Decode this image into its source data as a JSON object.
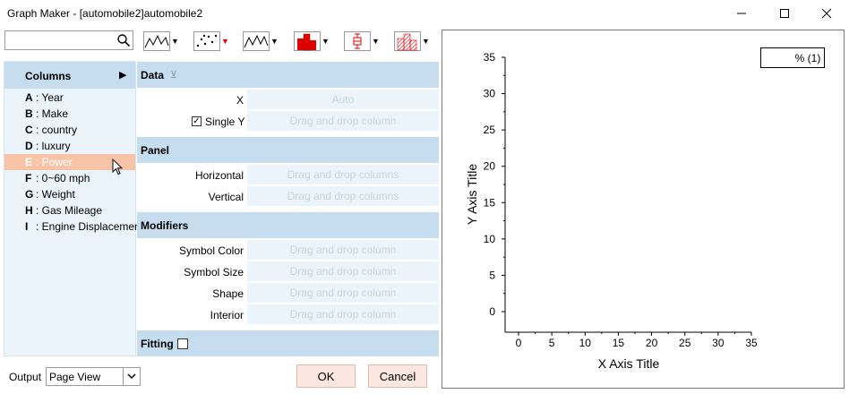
{
  "window": {
    "title": "Graph Maker - [automobile2]automobile2",
    "minimize": "—",
    "maximize": "☐",
    "close": "✕"
  },
  "toolbar": {
    "search_placeholder": "",
    "plot_types": [
      "line-icon",
      "scatter-icon",
      "line-symbol-icon",
      "column-icon",
      "box-icon",
      "stacked-column-icon"
    ],
    "dropdown_arrow": "▼"
  },
  "columns": {
    "title": "Columns",
    "expand_arrow": "▶",
    "items": [
      {
        "letter": "A",
        "name": ": Year"
      },
      {
        "letter": "B",
        "name": ": Make"
      },
      {
        "letter": "C",
        "name": ": country"
      },
      {
        "letter": "D",
        "name": ": luxury"
      },
      {
        "letter": "E",
        "name": ": Power",
        "selected": true
      },
      {
        "letter": "F",
        "name": ": 0~60 mph"
      },
      {
        "letter": "G",
        "name": ": Weight"
      },
      {
        "letter": "H",
        "name": ": Gas Mileage"
      },
      {
        "letter": "I",
        "name": ": Engine Displacement"
      }
    ]
  },
  "data_section": {
    "title": "Data",
    "pin": "⊻",
    "x_label": "X",
    "x_value": "Auto",
    "single_y_checked": true,
    "single_y_label": "Single Y",
    "y_placeholder": "Drag and drop column"
  },
  "panel_section": {
    "title": "Panel",
    "horizontal_label": "Horizontal",
    "horizontal_placeholder": "Drag and drop columns",
    "vertical_label": "Vertical",
    "vertical_placeholder": "Drag and drop columns"
  },
  "modifiers_section": {
    "title": "Modifiers",
    "rows": [
      {
        "label": "Symbol Color",
        "placeholder": "Drag and drop column"
      },
      {
        "label": "Symbol Size",
        "placeholder": "Drag and drop column"
      },
      {
        "label": "Shape",
        "placeholder": "Drag and drop column"
      },
      {
        "label": "Interior",
        "placeholder": "Drag and drop column"
      }
    ]
  },
  "fitting_section": {
    "title": "Fitting",
    "checked": false
  },
  "output": {
    "label": "Output",
    "value": "Page View"
  },
  "buttons": {
    "ok": "OK",
    "cancel": "Cancel"
  },
  "chart_data": {
    "type": "scatter",
    "xlabel": "X Axis Title",
    "ylabel": "Y Axis Title",
    "xlim": [
      0,
      35
    ],
    "ylim": [
      0,
      35
    ],
    "xticks": [
      "0",
      "5",
      "10",
      "15",
      "20",
      "25",
      "30",
      "35"
    ],
    "yticks": [
      "0",
      "5",
      "10",
      "15",
      "20",
      "25",
      "30",
      "35"
    ],
    "legend": "% (1)",
    "legend_position": "top-right",
    "series": [],
    "grid": false
  }
}
